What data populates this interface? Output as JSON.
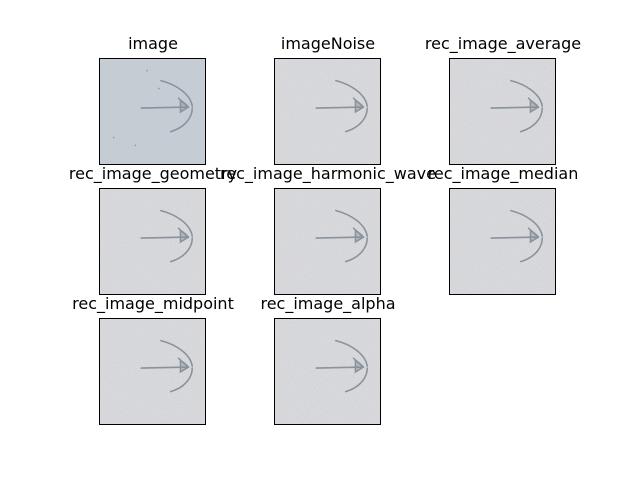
{
  "figure": {
    "panels": [
      {
        "title": "image",
        "variant": "clean"
      },
      {
        "title": "imageNoise",
        "variant": "noisy"
      },
      {
        "title": "rec_image_average",
        "variant": "noisy"
      },
      {
        "title": "rec_image_geometry",
        "variant": "noisy"
      },
      {
        "title": "rec_image_harmonic_wave",
        "variant": "noisy"
      },
      {
        "title": "rec_image_median",
        "variant": "noisy"
      },
      {
        "title": "rec_image_midpoint",
        "variant": "noisy"
      },
      {
        "title": "rec_image_alpha",
        "variant": "noisy"
      }
    ],
    "colors": {
      "clean_background": "#c6ccd4",
      "noisy_background": "#c4c7c9",
      "specimen_stroke": "#8a929c",
      "border": "#000000"
    }
  }
}
